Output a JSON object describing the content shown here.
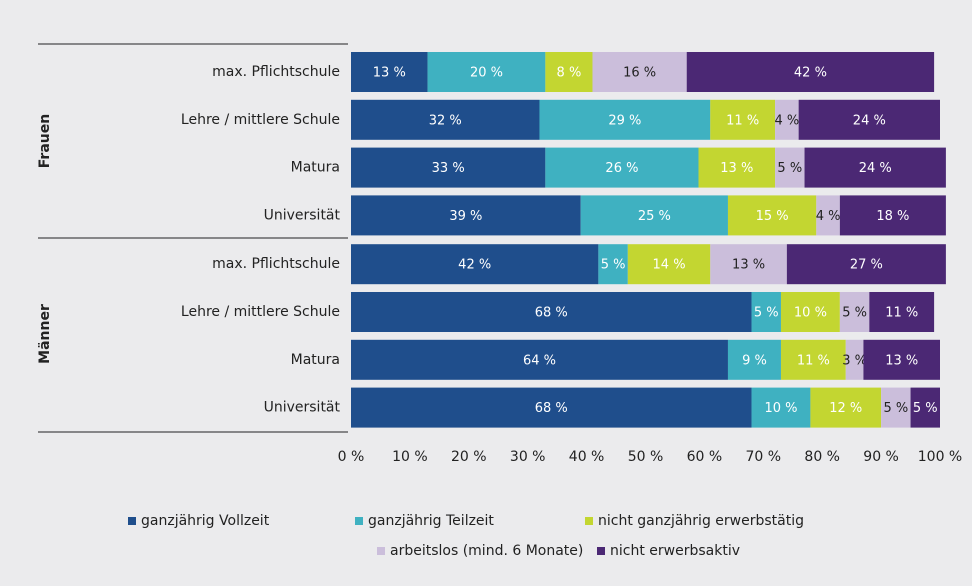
{
  "chart_data": {
    "type": "stacked-barh",
    "groups": [
      "Frauen",
      "Männer"
    ],
    "categories": [
      "max. Pflichtschule",
      "Lehre / mittlere Schule",
      "Matura",
      "Universität",
      "max. Pflichtschule",
      "Lehre / mittlere Schule",
      "Matura",
      "Universität"
    ],
    "series": [
      {
        "name": "ganzjährig Vollzeit",
        "color": "#1f4e8c",
        "values": [
          13,
          32,
          33,
          39,
          42,
          68,
          64,
          68
        ],
        "value_labels": [
          "13 %",
          "32 %",
          "33 %",
          "39 %",
          "42 %",
          "68 %",
          "64 %",
          "68 %"
        ]
      },
      {
        "name": "ganzjährig Teilzeit",
        "color": "#3fb1c1",
        "values": [
          20,
          29,
          26,
          25,
          5,
          5,
          9,
          10
        ],
        "value_labels": [
          "20 %",
          "29 %",
          "26 %",
          "25 %",
          "5 %",
          "5 %",
          "9 %",
          "10 %"
        ]
      },
      {
        "name": "nicht ganzjährig erwerbstätig",
        "color": "#c3d631",
        "values": [
          8,
          11,
          13,
          15,
          14,
          10,
          11,
          12
        ],
        "value_labels": [
          "8 %",
          "11 %",
          "13 %",
          "15 %",
          "14 %",
          "10 %",
          "11 %",
          "12 %"
        ]
      },
      {
        "name": "arbeitslos (mind. 6 Monate)",
        "color": "#cbbedb",
        "values": [
          16,
          4,
          5,
          4,
          13,
          5,
          3,
          5
        ],
        "value_labels": [
          "16 %",
          "4 %",
          "5 %",
          "4 %",
          "13 %",
          "5 %",
          "3 %",
          "5 %"
        ]
      },
      {
        "name": "nicht erwerbsaktiv",
        "color": "#4b2874",
        "values": [
          42,
          24,
          24,
          18,
          27,
          11,
          13,
          5
        ],
        "value_labels": [
          "42 %",
          "24 %",
          "24 %",
          "18 %",
          "27 %",
          "11 %",
          "13 %",
          "5 %"
        ]
      }
    ],
    "xlim": [
      0,
      100
    ],
    "xticks": [
      {
        "value": 0,
        "label": "0 %"
      },
      {
        "value": 10,
        "label": "10 %"
      },
      {
        "value": 20,
        "label": "20 %"
      },
      {
        "value": 30,
        "label": "30 %"
      },
      {
        "value": 40,
        "label": "40 %"
      },
      {
        "value": 50,
        "label": "50 %"
      },
      {
        "value": 60,
        "label": "60 %"
      },
      {
        "value": 70,
        "label": "70 %"
      },
      {
        "value": 80,
        "label": "80 %"
      },
      {
        "value": 90,
        "label": "90 %"
      },
      {
        "value": 100,
        "label": "100 %"
      }
    ]
  }
}
